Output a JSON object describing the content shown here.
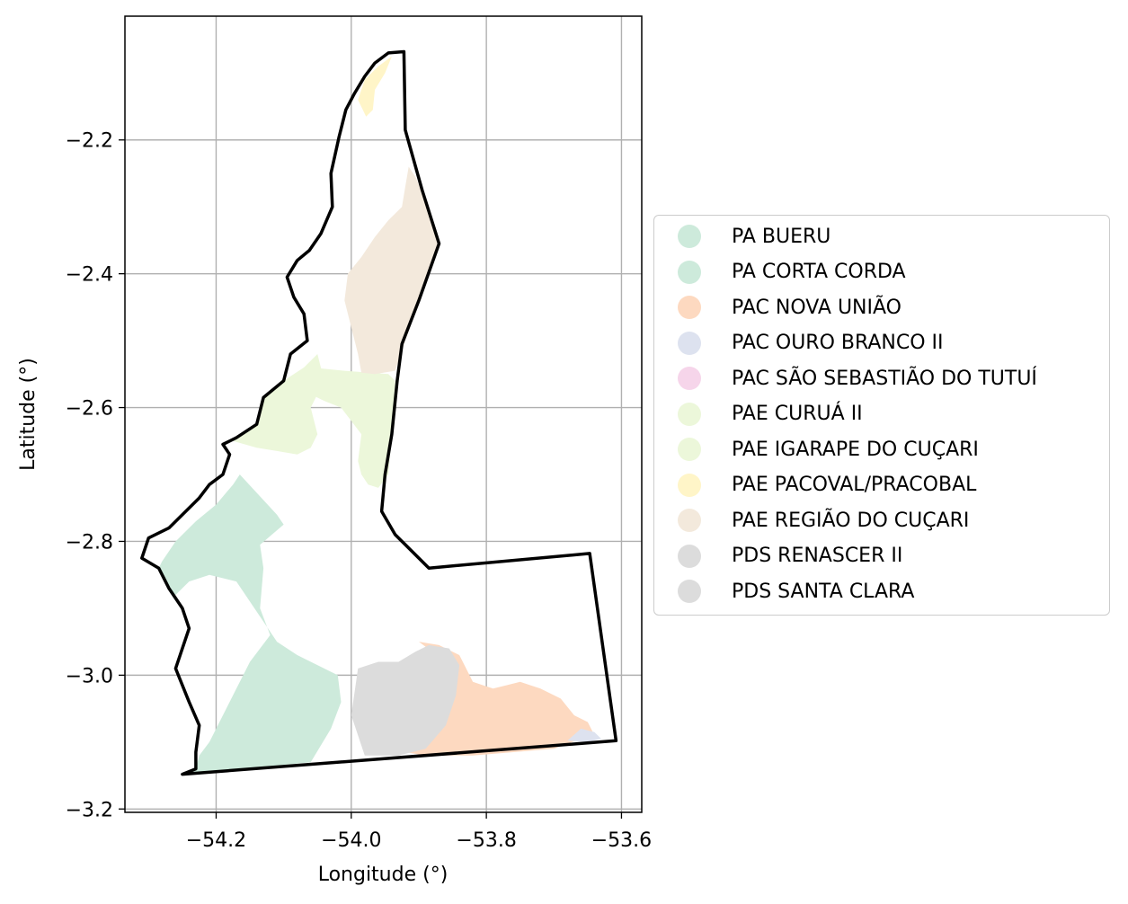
{
  "axes": {
    "xlabel": "Longitude (°)",
    "ylabel": "Latitude (°)",
    "xlim": [
      -54.335,
      -53.57
    ],
    "ylim": [
      -3.205,
      -2.015
    ],
    "xticks": [
      -54.2,
      -54.0,
      -53.8,
      -53.6
    ],
    "xtick_labels": [
      "−54.2",
      "−54.0",
      "−53.8",
      "−53.6"
    ],
    "yticks": [
      -2.2,
      -2.4,
      -2.6,
      -2.8,
      -3.0,
      -3.2
    ],
    "ytick_labels": [
      "−2.2",
      "−2.4",
      "−2.6",
      "−2.8",
      "−3.0",
      "−3.2"
    ],
    "grid": true
  },
  "legend": {
    "placement": "center-right outside",
    "items": [
      {
        "label": "PA BUERU",
        "color": "#cdeadb"
      },
      {
        "label": "PA CORTA CORDA",
        "color": "#cdeadb"
      },
      {
        "label": "PAC NOVA UNIÃO",
        "color": "#fdd9c0"
      },
      {
        "label": "PAC OURO BRANCO II",
        "color": "#dde2ef"
      },
      {
        "label": "PAC SÃO SEBASTIÃO DO TUTUÍ",
        "color": "#f6d5ea"
      },
      {
        "label": "PAE CURUÁ II",
        "color": "#ecf7da"
      },
      {
        "label": "PAE IGARAPE DO CUÇARI",
        "color": "#ecf7da"
      },
      {
        "label": "PAE PACOVAL/PRACOBAL",
        "color": "#fff5c8"
      },
      {
        "label": "PAE REGIÃO DO CUÇARI",
        "color": "#f3e9dc"
      },
      {
        "label": "PDS RENASCER II",
        "color": "#dcdcdc"
      },
      {
        "label": "PDS SANTA CLARA",
        "color": "#dcdcdc"
      }
    ]
  },
  "chart_data": {
    "type": "map",
    "boundary": [
      [
        -53.922,
        -2.068
      ],
      [
        -53.945,
        -2.07
      ],
      [
        -53.965,
        -2.085
      ],
      [
        -53.98,
        -2.105
      ],
      [
        -53.995,
        -2.13
      ],
      [
        -54.008,
        -2.155
      ],
      [
        -54.018,
        -2.195
      ],
      [
        -54.03,
        -2.25
      ],
      [
        -54.028,
        -2.3
      ],
      [
        -54.045,
        -2.34
      ],
      [
        -54.062,
        -2.365
      ],
      [
        -54.08,
        -2.38
      ],
      [
        -54.095,
        -2.405
      ],
      [
        -54.085,
        -2.435
      ],
      [
        -54.07,
        -2.46
      ],
      [
        -54.065,
        -2.5
      ],
      [
        -54.09,
        -2.52
      ],
      [
        -54.1,
        -2.56
      ],
      [
        -54.13,
        -2.585
      ],
      [
        -54.14,
        -2.625
      ],
      [
        -54.17,
        -2.645
      ],
      [
        -54.19,
        -2.655
      ],
      [
        -54.18,
        -2.67
      ],
      [
        -54.19,
        -2.7
      ],
      [
        -54.21,
        -2.715
      ],
      [
        -54.225,
        -2.735
      ],
      [
        -54.25,
        -2.76
      ],
      [
        -54.27,
        -2.78
      ],
      [
        -54.3,
        -2.795
      ],
      [
        -54.31,
        -2.825
      ],
      [
        -54.285,
        -2.84
      ],
      [
        -54.27,
        -2.87
      ],
      [
        -54.25,
        -2.9
      ],
      [
        -54.24,
        -2.93
      ],
      [
        -54.25,
        -2.96
      ],
      [
        -54.26,
        -2.99
      ],
      [
        -54.24,
        -3.04
      ],
      [
        -54.225,
        -3.075
      ],
      [
        -54.23,
        -3.115
      ],
      [
        -54.23,
        -3.14
      ],
      [
        -54.25,
        -3.148
      ],
      [
        -53.608,
        -3.098
      ],
      [
        -53.647,
        -2.818
      ],
      [
        -53.885,
        -2.84
      ],
      [
        -53.9,
        -2.825
      ],
      [
        -53.915,
        -2.81
      ],
      [
        -53.935,
        -2.79
      ],
      [
        -53.955,
        -2.755
      ],
      [
        -53.95,
        -2.7
      ],
      [
        -53.94,
        -2.64
      ],
      [
        -53.932,
        -2.56
      ],
      [
        -53.925,
        -2.505
      ],
      [
        -53.9,
        -2.44
      ],
      [
        -53.87,
        -2.355
      ],
      [
        -53.895,
        -2.275
      ],
      [
        -53.92,
        -2.185
      ],
      [
        -53.922,
        -2.068
      ]
    ],
    "regions": [
      {
        "name": "PA BUERU",
        "color": "#cdeadb",
        "coords": [
          [
            -54.28,
            -2.83
          ],
          [
            -54.26,
            -2.8
          ],
          [
            -54.23,
            -2.77
          ],
          [
            -54.2,
            -2.745
          ],
          [
            -54.175,
            -2.715
          ],
          [
            -54.165,
            -2.7
          ],
          [
            -54.11,
            -2.76
          ],
          [
            -54.1,
            -2.775
          ],
          [
            -54.135,
            -2.805
          ],
          [
            -54.13,
            -2.84
          ],
          [
            -54.135,
            -2.9
          ],
          [
            -54.12,
            -2.94
          ],
          [
            -54.15,
            -2.98
          ],
          [
            -54.17,
            -3.02
          ],
          [
            -54.19,
            -3.06
          ],
          [
            -54.21,
            -3.1
          ],
          [
            -54.225,
            -3.12
          ],
          [
            -54.23,
            -3.14
          ],
          [
            -54.25,
            -3.148
          ],
          [
            -54.14,
            -3.138
          ],
          [
            -54.06,
            -3.13
          ],
          [
            -54.03,
            -3.08
          ],
          [
            -54.015,
            -3.04
          ],
          [
            -54.02,
            -3.0
          ],
          [
            -54.08,
            -2.97
          ],
          [
            -54.11,
            -2.95
          ],
          [
            -54.13,
            -2.92
          ],
          [
            -54.15,
            -2.89
          ],
          [
            -54.17,
            -2.86
          ],
          [
            -54.21,
            -2.85
          ],
          [
            -54.24,
            -2.86
          ],
          [
            -54.26,
            -2.88
          ],
          [
            -54.27,
            -2.87
          ],
          [
            -54.285,
            -2.84
          ]
        ]
      },
      {
        "name": "PAC NOVA UNIÃO",
        "color": "#fdd9c0",
        "coords": [
          [
            -53.9,
            -2.95
          ],
          [
            -53.87,
            -2.955
          ],
          [
            -53.84,
            -2.97
          ],
          [
            -53.82,
            -3.01
          ],
          [
            -53.79,
            -3.02
          ],
          [
            -53.75,
            -3.01
          ],
          [
            -53.72,
            -3.02
          ],
          [
            -53.69,
            -3.035
          ],
          [
            -53.67,
            -3.06
          ],
          [
            -53.65,
            -3.07
          ],
          [
            -53.64,
            -3.09
          ],
          [
            -53.66,
            -3.095
          ],
          [
            -53.7,
            -3.11
          ],
          [
            -53.76,
            -3.115
          ],
          [
            -53.82,
            -3.12
          ],
          [
            -53.89,
            -3.12
          ],
          [
            -53.92,
            -3.115
          ],
          [
            -53.89,
            -3.1
          ],
          [
            -53.86,
            -3.07
          ],
          [
            -53.845,
            -3.02
          ],
          [
            -53.86,
            -2.98
          ]
        ]
      },
      {
        "name": "PAC OURO BRANCO II",
        "color": "#dde2ef",
        "coords": [
          [
            -53.66,
            -3.08
          ],
          [
            -53.64,
            -3.085
          ],
          [
            -53.63,
            -3.095
          ],
          [
            -53.65,
            -3.1
          ],
          [
            -53.68,
            -3.098
          ]
        ]
      },
      {
        "name": "PAE CURUÁ II",
        "color": "#ecf7da",
        "coords": [
          [
            -54.06,
            -2.58
          ],
          [
            -54.04,
            -2.59
          ],
          [
            -54.015,
            -2.6
          ],
          [
            -54.0,
            -2.62
          ],
          [
            -53.985,
            -2.64
          ],
          [
            -53.99,
            -2.68
          ],
          [
            -53.985,
            -2.7
          ],
          [
            -53.975,
            -2.715
          ],
          [
            -53.96,
            -2.72
          ],
          [
            -53.945,
            -2.7
          ],
          [
            -53.94,
            -2.64
          ],
          [
            -53.935,
            -2.56
          ],
          [
            -53.945,
            -2.55
          ],
          [
            -54.01,
            -2.545
          ],
          [
            -54.06,
            -2.54
          ]
        ]
      },
      {
        "name": "PAE IGARAPE DO CUÇARI",
        "color": "#ecf7da",
        "coords": [
          [
            -54.1,
            -2.56
          ],
          [
            -54.07,
            -2.54
          ],
          [
            -54.05,
            -2.52
          ],
          [
            -54.04,
            -2.56
          ],
          [
            -54.06,
            -2.6
          ],
          [
            -54.05,
            -2.64
          ],
          [
            -54.06,
            -2.66
          ],
          [
            -54.08,
            -2.67
          ],
          [
            -54.11,
            -2.665
          ],
          [
            -54.14,
            -2.66
          ],
          [
            -54.175,
            -2.65
          ],
          [
            -54.14,
            -2.625
          ],
          [
            -54.13,
            -2.585
          ]
        ]
      },
      {
        "name": "PAE PACOVAL/PRACOBAL",
        "color": "#fff5c8",
        "coords": [
          [
            -53.94,
            -2.075
          ],
          [
            -53.96,
            -2.09
          ],
          [
            -53.98,
            -2.11
          ],
          [
            -53.99,
            -2.14
          ],
          [
            -53.978,
            -2.165
          ],
          [
            -53.968,
            -2.155
          ],
          [
            -53.965,
            -2.125
          ],
          [
            -53.95,
            -2.1
          ]
        ]
      },
      {
        "name": "PAE REGIÃO DO CUÇARI",
        "color": "#f3e9dc",
        "coords": [
          [
            -53.925,
            -2.3
          ],
          [
            -53.92,
            -2.27
          ],
          [
            -53.915,
            -2.24
          ],
          [
            -53.905,
            -2.255
          ],
          [
            -53.885,
            -2.3
          ],
          [
            -53.87,
            -2.355
          ],
          [
            -53.895,
            -2.43
          ],
          [
            -53.92,
            -2.5
          ],
          [
            -53.935,
            -2.545
          ],
          [
            -53.965,
            -2.55
          ],
          [
            -53.985,
            -2.548
          ],
          [
            -53.99,
            -2.52
          ],
          [
            -54.0,
            -2.48
          ],
          [
            -54.01,
            -2.44
          ],
          [
            -54.005,
            -2.4
          ],
          [
            -53.985,
            -2.375
          ],
          [
            -53.965,
            -2.345
          ],
          [
            -53.945,
            -2.32
          ]
        ]
      },
      {
        "name": "PDS RENASCER II",
        "color": "#dcdcdc",
        "coords": [
          [
            -53.99,
            -2.99
          ],
          [
            -53.96,
            -2.98
          ],
          [
            -53.93,
            -2.98
          ],
          [
            -53.905,
            -2.965
          ],
          [
            -53.885,
            -2.955
          ],
          [
            -53.855,
            -2.96
          ],
          [
            -53.84,
            -2.985
          ],
          [
            -53.845,
            -3.03
          ],
          [
            -53.86,
            -3.075
          ],
          [
            -53.89,
            -3.11
          ],
          [
            -53.93,
            -3.12
          ],
          [
            -53.98,
            -3.12
          ],
          [
            -53.99,
            -3.09
          ],
          [
            -54.0,
            -3.06
          ]
        ]
      }
    ]
  }
}
